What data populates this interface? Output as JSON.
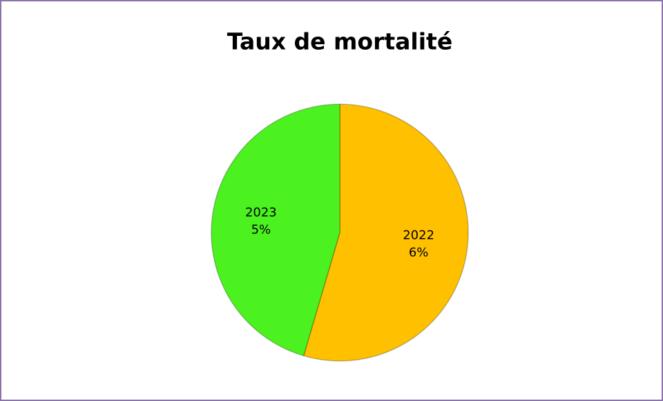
{
  "chart_data": {
    "type": "pie",
    "title": "Taux de mortalité",
    "categories": [
      "2022",
      "2023"
    ],
    "values": [
      6,
      5
    ],
    "value_labels": [
      "6%",
      "5%"
    ],
    "colors": [
      "#ffc000",
      "#4cf21f"
    ]
  }
}
